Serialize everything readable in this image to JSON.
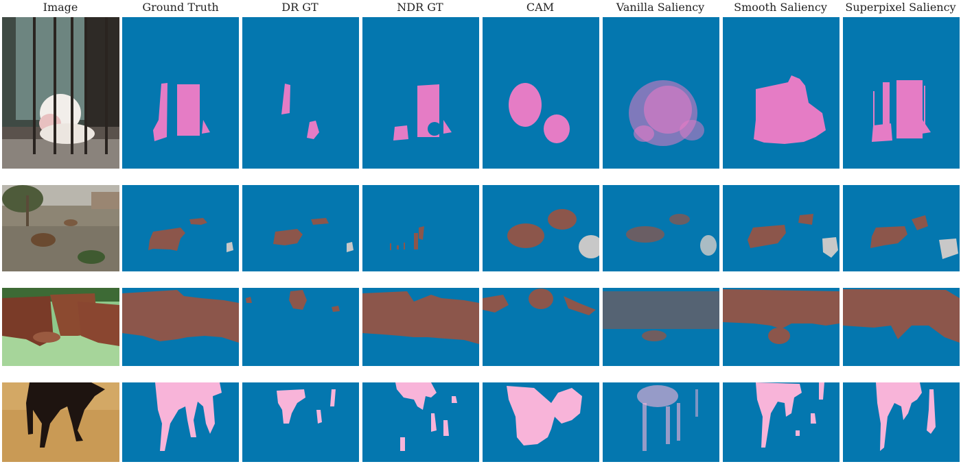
{
  "columns": [
    "Image",
    "Ground Truth",
    "DR GT",
    "NDR GT",
    "CAM",
    "Vanilla Saliency",
    "Smooth Saliency",
    "Superpixel Saliency"
  ],
  "colors": {
    "background": "#0477af",
    "dog": "#e57cc5",
    "cow": "#8c564b",
    "horse": "#f8b4d9",
    "person": "#c8c8c8"
  },
  "rows": [
    {
      "subject": "dog on balcony",
      "class_color": "dog"
    },
    {
      "subject": "cows on landfill",
      "class_color": "cow"
    },
    {
      "subject": "cows in grass",
      "class_color": "cow"
    },
    {
      "subject": "horse legs",
      "class_color": "horse"
    }
  ]
}
